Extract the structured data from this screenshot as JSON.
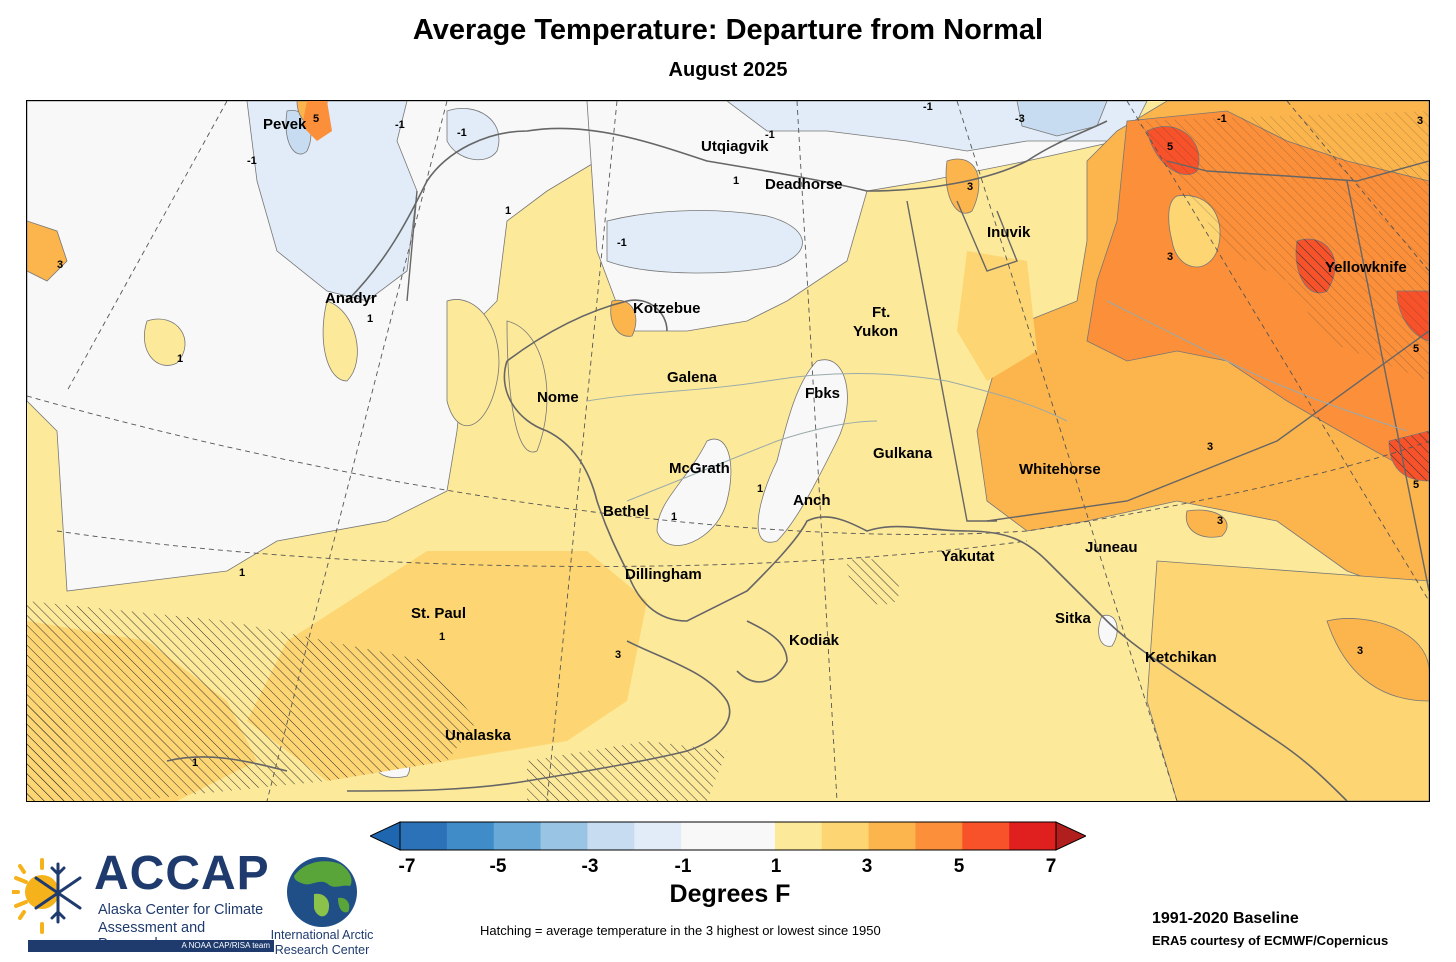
{
  "title": "Average Temperature: Departure from Normal",
  "subtitle": "August 2025",
  "cities": [
    {
      "name": "Pevek"
    },
    {
      "name": "Utqiagvik"
    },
    {
      "name": "Deadhorse"
    },
    {
      "name": "Inuvik"
    },
    {
      "name": "Yellowknife"
    },
    {
      "name": "Anadyr"
    },
    {
      "name": "Kotzebue"
    },
    {
      "name": "Ft."
    },
    {
      "name": "Yukon"
    },
    {
      "name": "Galena"
    },
    {
      "name": "Nome"
    },
    {
      "name": "Fbks"
    },
    {
      "name": "Gulkana"
    },
    {
      "name": "McGrath"
    },
    {
      "name": "Whitehorse"
    },
    {
      "name": "Bethel"
    },
    {
      "name": "Anch"
    },
    {
      "name": "Yakutat"
    },
    {
      "name": "Juneau"
    },
    {
      "name": "Dillingham"
    },
    {
      "name": "St. Paul"
    },
    {
      "name": "Sitka"
    },
    {
      "name": "Kodiak"
    },
    {
      "name": "Ketchikan"
    },
    {
      "name": "Unalaska"
    }
  ],
  "contour_labels": [
    "-1",
    "-1",
    "-1",
    "-1",
    "-1",
    "-1",
    "-3",
    "-1",
    "1",
    "1",
    "1",
    "1",
    "1",
    "1",
    "1",
    "1",
    "1",
    "3",
    "3",
    "3",
    "3",
    "3",
    "3",
    "3",
    "3",
    "5",
    "5",
    "5",
    "5"
  ],
  "legend": {
    "colors": [
      "#2c72b8",
      "#3f8cc9",
      "#68a9d8",
      "#9ac4e3",
      "#c7dcf0",
      "#e1ecf8",
      "#f8f8f8",
      "#f8f8f8",
      "#fde99a",
      "#fdd673",
      "#fcb54c",
      "#fb8f3a",
      "#f8522a",
      "#e0201e"
    ],
    "low_arrow_color": "#1f66b0",
    "high_arrow_color": "#b01e1e",
    "ticks": [
      "-7",
      "-5",
      "-3",
      "-1",
      "1",
      "3",
      "5",
      "7"
    ],
    "units": "Degrees F"
  },
  "hatching_note": "Hatching = average temperature in the 3 highest or lowest since 1950",
  "baseline": "1991-2020 Baseline",
  "credit": "ERA5 courtesy of ECMWF/Copernicus",
  "logos": {
    "accap": {
      "name": "ACCAP",
      "line1": "Alaska Center for Climate",
      "line2": "Assessment and Preparedness",
      "tag": "A NOAA CAP/RISA team"
    },
    "iarc": {
      "line1": "International Arctic",
      "line2": "Research Center"
    }
  }
}
